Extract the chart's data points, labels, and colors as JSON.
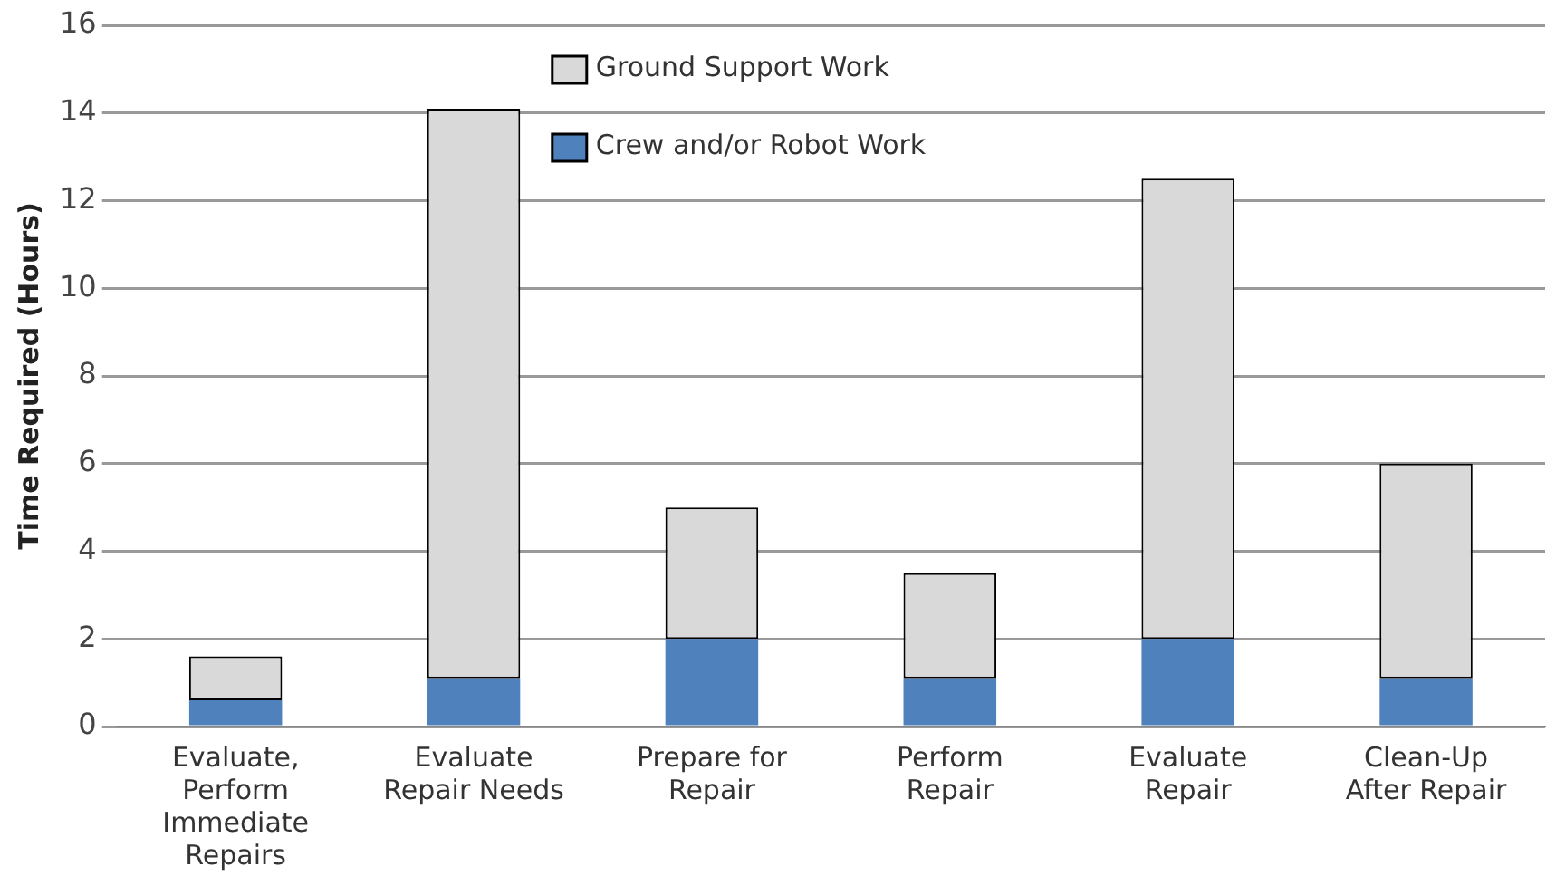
{
  "chart_data": {
    "type": "bar",
    "stacked": true,
    "ylabel": "Time Required (Hours)",
    "categories": [
      "Evaluate, Perform Immediate Repairs",
      "Evaluate Repair Needs",
      "Prepare for Repair",
      "Perform Repair",
      "Evaluate Repair",
      "Clean-Up After Repair"
    ],
    "series": [
      {
        "name": "Crew and/or Robot Work",
        "color": "#4f81bd",
        "values": [
          0.6,
          1.1,
          2.0,
          1.1,
          2.0,
          1.1
        ]
      },
      {
        "name": "Ground Support Work",
        "color": "#d9d9d9",
        "values": [
          1.0,
          13.0,
          3.0,
          2.4,
          10.5,
          4.9
        ]
      }
    ],
    "ylim": [
      0,
      16
    ],
    "yticks": [
      0,
      2,
      4,
      6,
      8,
      10,
      12,
      14,
      16
    ],
    "grid": "y",
    "legend": "top"
  }
}
